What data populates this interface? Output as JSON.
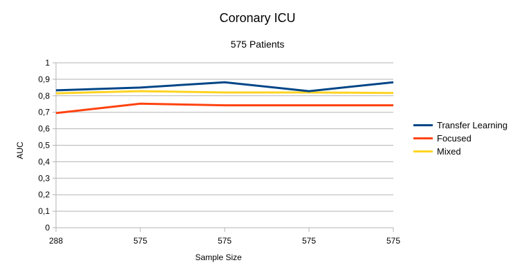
{
  "chart_data": {
    "type": "line",
    "title": "Coronary ICU",
    "subtitle": "575 Patients",
    "xlabel": "Sample Size",
    "ylabel": "AUC",
    "categories": [
      "288",
      "575",
      "575",
      "575",
      "575"
    ],
    "ylim": [
      0,
      1
    ],
    "yticks": [
      "0",
      "0,1",
      "0,2",
      "0,3",
      "0,4",
      "0,5",
      "0,6",
      "0,7",
      "0,8",
      "0,9",
      "1"
    ],
    "grid": true,
    "legend_position": "right",
    "series": [
      {
        "name": "Transfer Learning",
        "color": "#004586",
        "values": [
          0.833,
          0.85,
          0.882,
          0.828,
          0.882
        ]
      },
      {
        "name": "Focused",
        "color": "#ff420e",
        "values": [
          0.695,
          0.752,
          0.742,
          0.742,
          0.742
        ]
      },
      {
        "name": "Mixed",
        "color": "#ffd320",
        "values": [
          0.815,
          0.828,
          0.82,
          0.82,
          0.817
        ]
      }
    ]
  }
}
